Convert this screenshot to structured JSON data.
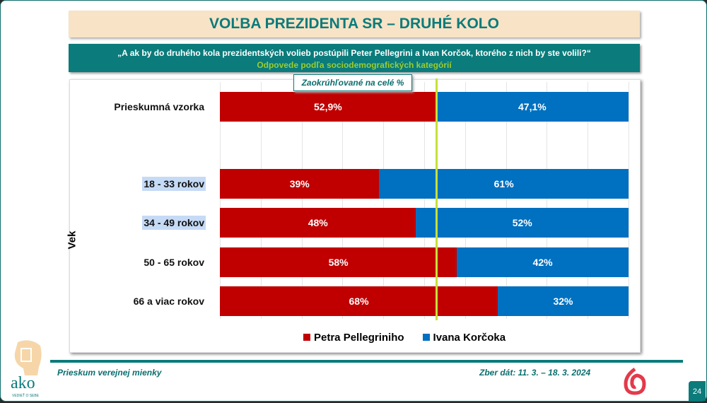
{
  "title": "VOĽBA PREZIDENTA SR – DRUHÉ KOLO",
  "question": "„A ak by do druhého kola prezidentských volieb postúpili Peter Pellegrini a Ivan Korčok, ktorého z nich by ste volili?“",
  "subtitle": "Odpovede podľa sociodemografických kategórií",
  "note": "Zaokrúhľované na celé %",
  "colors": {
    "pellegrini": "#c00000",
    "korcok": "#0070c0",
    "marker": "#c6e03a",
    "teal": "#0b7b7b"
  },
  "chart_data": {
    "type": "bar",
    "orientation": "horizontal-stacked-100",
    "group_label": "Vek",
    "categories": [
      "Prieskumná vzorka",
      "18 - 33 rokov",
      "34 - 49 rokov",
      "50 - 65 rokov",
      "66 a viac rokov"
    ],
    "series": [
      {
        "name": "Petra Pellegriniho",
        "values": [
          52.9,
          39,
          48,
          58,
          68
        ],
        "labels": [
          "52,9%",
          "39%",
          "48%",
          "58%",
          "68%"
        ]
      },
      {
        "name": "Ivana Korčoka",
        "values": [
          47.1,
          61,
          52,
          42,
          32
        ],
        "labels": [
          "47,1%",
          "61%",
          "52%",
          "42%",
          "32%"
        ]
      }
    ],
    "xlim": [
      0,
      100
    ],
    "reference_line": 52.9,
    "legend": "bottom",
    "grid": true
  },
  "footer": {
    "left": "Prieskum verejnej mienky",
    "right": "Zber dát: 11. 3. – 18. 3. 2024",
    "page": "24",
    "logo": "ako",
    "logo_tag": "VEDIEŤ O SEBE"
  }
}
